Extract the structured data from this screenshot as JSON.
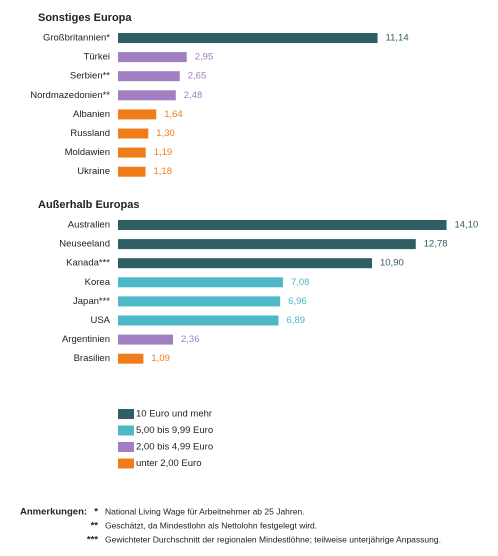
{
  "chart_data": [
    {
      "type": "bar",
      "orientation": "horizontal",
      "title": "Sonstiges Europa",
      "categories": [
        "Großbritannien*",
        "Türkei",
        "Serbien**",
        "Nordmazedonien**",
        "Albanien",
        "Russland",
        "Moldawien",
        "Ukraine"
      ],
      "values": [
        11.14,
        2.95,
        2.65,
        2.48,
        1.64,
        1.3,
        1.19,
        1.18
      ],
      "value_labels": [
        "11,14",
        "2,95",
        "2,65",
        "2,48",
        "1,64",
        "1,30",
        "1,19",
        "1,18"
      ],
      "colors": [
        "#2f5f63",
        "#a27ec2",
        "#a27ec2",
        "#a27ec2",
        "#f07d1a",
        "#f07d1a",
        "#f07d1a",
        "#f07d1a"
      ]
    },
    {
      "type": "bar",
      "orientation": "horizontal",
      "title": "Außerhalb Europas",
      "categories": [
        "Australien",
        "Neuseeland",
        "Kanada***",
        "Korea",
        "Japan***",
        "USA",
        "Argentinien",
        "Brasilien"
      ],
      "values": [
        14.1,
        12.78,
        10.9,
        7.08,
        6.96,
        6.89,
        2.36,
        1.09
      ],
      "value_labels": [
        "14,10",
        "12,78",
        "10,90",
        "7,08",
        "6,96",
        "6,89",
        "2,36",
        "1,09"
      ],
      "colors": [
        "#2f5f63",
        "#2f5f63",
        "#2f5f63",
        "#4db8c8",
        "#4db8c8",
        "#4db8c8",
        "#a27ec2",
        "#f07d1a"
      ]
    }
  ],
  "legend": [
    {
      "name": "10 Euro und mehr",
      "color": "#2f5f63"
    },
    {
      "name": "5,00 bis 9,99 Euro",
      "color": "#4db8c8"
    },
    {
      "name": "2,00 bis 4,99 Euro",
      "color": "#a27ec2"
    },
    {
      "name": "unter 2,00 Euro",
      "color": "#f07d1a"
    }
  ],
  "notes": {
    "label": "Anmerkungen:",
    "items": [
      {
        "mark": "*",
        "text": "National Living Wage für Arbeitnehmer ab 25 Jahren."
      },
      {
        "mark": "**",
        "text": "Geschätzt, da Mindestlohn als Nettolohn festgelegt wird."
      },
      {
        "mark": "***",
        "text": "Gewichteter Durchschnitt der regionalen Mindestlöhne; teilweise unterjährige Anpassung."
      }
    ]
  }
}
